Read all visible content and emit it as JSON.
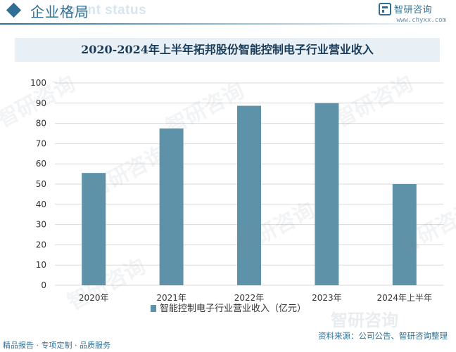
{
  "header": {
    "title": "企业格局",
    "ghost_text": "ment status",
    "logo_name": "智研咨询",
    "logo_url": "www.chyxx.com"
  },
  "footer": {
    "left_text": "精品报告 · 专项定制 · 品质服务",
    "source": "资料来源：公司公告、智研咨询整理"
  },
  "watermark": {
    "text": "智研咨询"
  },
  "colors": {
    "bar": "#5e92a8",
    "accent": "#2f6f95",
    "title_band": "#e8eff5"
  },
  "chart_data": {
    "type": "bar",
    "title": "2020-2024年上半年拓邦股份智能控制电子行业营业收入",
    "categories": [
      "2020年",
      "2021年",
      "2022年",
      "2023年",
      "2024年上半年"
    ],
    "series": [
      {
        "name": "智能控制电子行业营业收入（亿元）",
        "values": [
          55.5,
          77.5,
          88.7,
          90.0,
          50.0
        ]
      }
    ],
    "ylim": [
      0,
      100
    ],
    "yticks": [
      0,
      10,
      20,
      30,
      40,
      50,
      60,
      70,
      80,
      90,
      100
    ],
    "grid": true,
    "legend": "bottom",
    "xlabel": "",
    "ylabel": ""
  }
}
